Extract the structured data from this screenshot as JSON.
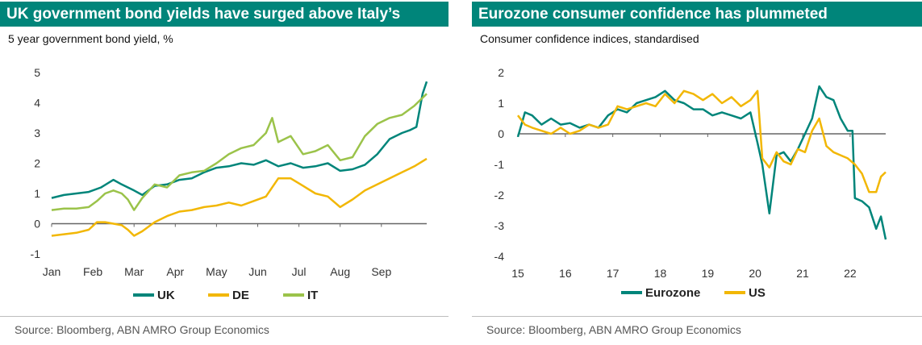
{
  "colors": {
    "teal": "#00857a",
    "yellow": "#f2b705",
    "lightgreen": "#9bc34a",
    "grey": "#bdbdbd"
  },
  "left": {
    "title": "UK government bond yields have surged above Italy’s",
    "subtitle": "5 year government bond yield, %",
    "source": "Source: Bloomberg, ABN AMRO Group Economics"
  },
  "right": {
    "title": "Eurozone consumer confidence has plummeted",
    "subtitle": "Consumer confidence indices, standardised",
    "source": "Source: Bloomberg, ABN AMRO Group Economics"
  },
  "chart_data": [
    {
      "type": "line",
      "title": "UK government bond yields have surged above Italy’s",
      "subtitle": "5 year government bond yield, %",
      "x_ticks": [
        "Jan",
        "Feb",
        "Mar",
        "Apr",
        "May",
        "Jun",
        "Jul",
        "Aug",
        "Sep"
      ],
      "xlim": [
        0,
        9.1
      ],
      "ylim": [
        -1,
        5
      ],
      "y_ticks": [
        "-1",
        "0",
        "1",
        "2",
        "3",
        "4",
        "5"
      ],
      "grid": false,
      "legend": "bottom",
      "series": [
        {
          "name": "UK",
          "color": "#00857a",
          "x": [
            0,
            0.3,
            0.6,
            0.9,
            1.2,
            1.5,
            1.7,
            1.85,
            2.0,
            2.2,
            2.5,
            2.8,
            3.1,
            3.4,
            3.7,
            4.0,
            4.3,
            4.6,
            4.9,
            5.2,
            5.5,
            5.8,
            6.1,
            6.4,
            6.7,
            7.0,
            7.3,
            7.6,
            7.9,
            8.2,
            8.5,
            8.7,
            8.85,
            9.0,
            9.1
          ],
          "y": [
            0.85,
            0.95,
            1.0,
            1.05,
            1.2,
            1.45,
            1.3,
            1.2,
            1.1,
            0.95,
            1.25,
            1.3,
            1.45,
            1.5,
            1.7,
            1.85,
            1.9,
            2.0,
            1.95,
            2.1,
            1.9,
            2.0,
            1.85,
            1.9,
            2.0,
            1.75,
            1.8,
            1.95,
            2.3,
            2.8,
            3.0,
            3.1,
            3.2,
            4.3,
            4.7
          ]
        },
        {
          "name": "DE",
          "color": "#f2b705",
          "x": [
            0,
            0.3,
            0.6,
            0.9,
            1.1,
            1.3,
            1.5,
            1.7,
            1.85,
            2.0,
            2.2,
            2.5,
            2.8,
            3.1,
            3.4,
            3.7,
            4.0,
            4.3,
            4.6,
            4.9,
            5.2,
            5.5,
            5.8,
            6.1,
            6.4,
            6.7,
            7.0,
            7.3,
            7.6,
            7.9,
            8.2,
            8.5,
            8.8,
            9.1
          ],
          "y": [
            -0.4,
            -0.35,
            -0.3,
            -0.2,
            0.05,
            0.05,
            0.0,
            -0.05,
            -0.2,
            -0.4,
            -0.25,
            0.05,
            0.25,
            0.4,
            0.45,
            0.55,
            0.6,
            0.7,
            0.6,
            0.75,
            0.9,
            1.5,
            1.5,
            1.25,
            1.0,
            0.9,
            0.55,
            0.8,
            1.1,
            1.3,
            1.5,
            1.7,
            1.9,
            2.15
          ]
        },
        {
          "name": "IT",
          "color": "#9bc34a",
          "x": [
            0,
            0.3,
            0.6,
            0.9,
            1.1,
            1.3,
            1.5,
            1.7,
            1.85,
            2.0,
            2.2,
            2.5,
            2.8,
            3.1,
            3.4,
            3.7,
            4.0,
            4.3,
            4.6,
            4.9,
            5.2,
            5.35,
            5.5,
            5.8,
            6.1,
            6.4,
            6.7,
            7.0,
            7.3,
            7.6,
            7.9,
            8.2,
            8.5,
            8.8,
            9.1
          ],
          "y": [
            0.45,
            0.5,
            0.5,
            0.55,
            0.75,
            1.0,
            1.1,
            1.0,
            0.8,
            0.45,
            0.85,
            1.3,
            1.2,
            1.6,
            1.7,
            1.75,
            2.0,
            2.3,
            2.5,
            2.6,
            3.0,
            3.5,
            2.7,
            2.9,
            2.3,
            2.4,
            2.6,
            2.1,
            2.2,
            2.9,
            3.3,
            3.5,
            3.6,
            3.9,
            4.3
          ]
        }
      ]
    },
    {
      "type": "line",
      "title": "Eurozone consumer confidence has plummeted",
      "subtitle": "Consumer confidence indices, standardised",
      "x_ticks": [
        "15",
        "16",
        "17",
        "18",
        "19",
        "20",
        "21",
        "22"
      ],
      "xlim": [
        2015,
        2022.75
      ],
      "ylim": [
        -4,
        2
      ],
      "y_ticks": [
        "-4",
        "-3",
        "-2",
        "-1",
        "0",
        "1",
        "2"
      ],
      "grid": false,
      "legend": "bottom",
      "series": [
        {
          "name": "Eurozone",
          "color": "#00857a",
          "x": [
            2015.0,
            2015.15,
            2015.3,
            2015.5,
            2015.7,
            2015.9,
            2016.1,
            2016.3,
            2016.5,
            2016.7,
            2016.9,
            2017.1,
            2017.3,
            2017.5,
            2017.7,
            2017.9,
            2018.1,
            2018.3,
            2018.5,
            2018.7,
            2018.9,
            2019.1,
            2019.3,
            2019.5,
            2019.7,
            2019.9,
            2020.05,
            2020.15,
            2020.3,
            2020.45,
            2020.6,
            2020.75,
            2020.9,
            2021.05,
            2021.2,
            2021.35,
            2021.5,
            2021.65,
            2021.8,
            2021.95,
            2022.05,
            2022.1,
            2022.25,
            2022.4,
            2022.55,
            2022.65,
            2022.75
          ],
          "y": [
            -0.1,
            0.7,
            0.6,
            0.3,
            0.5,
            0.3,
            0.35,
            0.2,
            0.3,
            0.2,
            0.6,
            0.8,
            0.7,
            1.0,
            1.1,
            1.2,
            1.4,
            1.1,
            1.0,
            0.8,
            0.8,
            0.6,
            0.7,
            0.6,
            0.5,
            0.7,
            -0.3,
            -1.0,
            -2.6,
            -0.7,
            -0.6,
            -0.9,
            -0.5,
            0.0,
            0.5,
            1.55,
            1.2,
            1.1,
            0.5,
            0.1,
            0.1,
            -2.1,
            -2.2,
            -2.4,
            -3.1,
            -2.7,
            -3.45
          ]
        },
        {
          "name": "US",
          "color": "#f2b705",
          "x": [
            2015.0,
            2015.15,
            2015.3,
            2015.5,
            2015.7,
            2015.9,
            2016.1,
            2016.3,
            2016.5,
            2016.7,
            2016.9,
            2017.1,
            2017.3,
            2017.5,
            2017.7,
            2017.9,
            2018.1,
            2018.3,
            2018.5,
            2018.7,
            2018.9,
            2019.1,
            2019.3,
            2019.5,
            2019.7,
            2019.9,
            2020.05,
            2020.15,
            2020.3,
            2020.45,
            2020.6,
            2020.75,
            2020.9,
            2021.05,
            2021.2,
            2021.35,
            2021.5,
            2021.65,
            2021.8,
            2021.95,
            2022.1,
            2022.25,
            2022.4,
            2022.55,
            2022.65,
            2022.75
          ],
          "y": [
            0.6,
            0.3,
            0.2,
            0.1,
            0.0,
            0.2,
            0.0,
            0.1,
            0.3,
            0.2,
            0.3,
            0.9,
            0.8,
            0.9,
            1.0,
            0.9,
            1.3,
            1.0,
            1.4,
            1.3,
            1.1,
            1.3,
            1.0,
            1.2,
            0.9,
            1.1,
            1.4,
            -0.8,
            -1.1,
            -0.6,
            -0.9,
            -1.0,
            -0.5,
            -0.6,
            0.1,
            0.5,
            -0.4,
            -0.6,
            -0.7,
            -0.8,
            -1.0,
            -1.3,
            -1.9,
            -1.9,
            -1.4,
            -1.25
          ]
        }
      ]
    }
  ]
}
